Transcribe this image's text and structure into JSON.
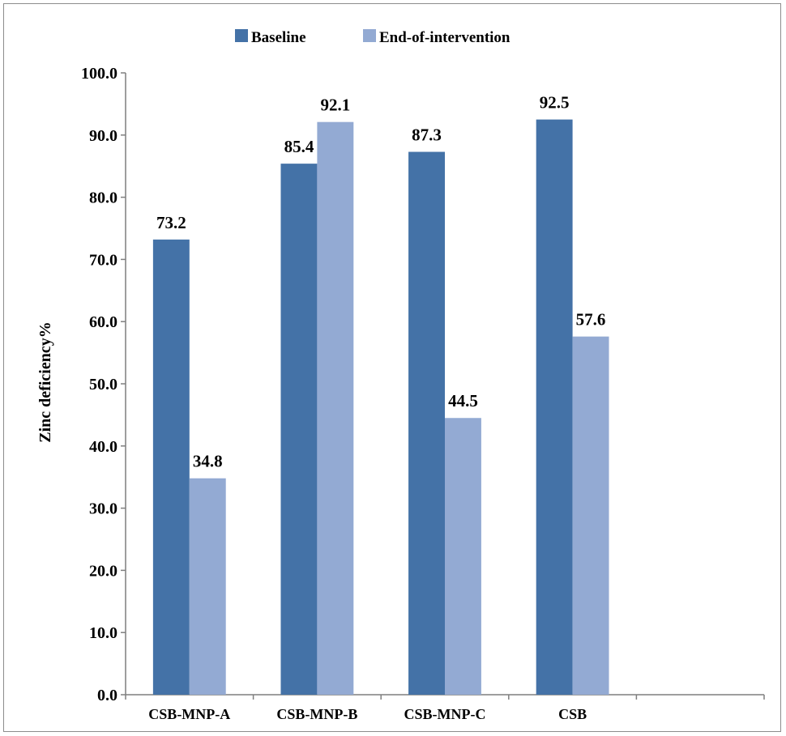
{
  "chart_data": {
    "type": "bar",
    "title": "",
    "xlabel": "",
    "ylabel": "Zinc deficiency%",
    "ylim": [
      0,
      100
    ],
    "yticks": [
      "0.0",
      "10.0",
      "20.0",
      "30.0",
      "40.0",
      "50.0",
      "60.0",
      "70.0",
      "80.0",
      "90.0",
      "100.0"
    ],
    "categories": [
      "CSB-MNP-A",
      "CSB-MNP-B",
      "CSB-MNP-C",
      "CSB",
      ""
    ],
    "series": [
      {
        "name": "Baseline",
        "color": "#4472a7",
        "values": [
          73.2,
          85.4,
          87.3,
          92.5,
          null
        ],
        "labels": [
          "73.2",
          "85.4",
          "87.3",
          "92.5",
          ""
        ]
      },
      {
        "name": "End-of-intervention",
        "color": "#93aad3",
        "values": [
          34.8,
          92.1,
          44.5,
          57.6,
          null
        ],
        "labels": [
          "34.8",
          "92.1",
          "44.5",
          "57.6",
          ""
        ]
      }
    ],
    "legend_position": "top-center",
    "grid": false
  }
}
